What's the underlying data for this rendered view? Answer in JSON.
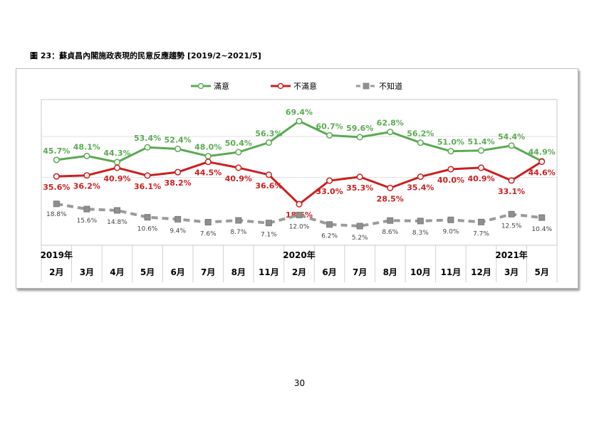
{
  "figure_title": "圖 23：蘇貞昌內閣施政表現的民意反應趨勢 [2019/2~2021/5]",
  "page_number": "30",
  "chart_data": {
    "type": "line",
    "title": "",
    "xlabel": "",
    "ylabel": "",
    "ylim": [
      0,
      75
    ],
    "grid": "horizontal",
    "legend_position": "top-center",
    "categories": [
      "2月",
      "3月",
      "4月",
      "5月",
      "6月",
      "7月",
      "8月",
      "11月",
      "2月",
      "6月",
      "7月",
      "8月",
      "10月",
      "11月",
      "12月",
      "3月",
      "5月"
    ],
    "year_labels": [
      {
        "label": "2019年",
        "index": 0
      },
      {
        "label": "2020年",
        "index": 8
      },
      {
        "label": "2021年",
        "index": 15
      }
    ],
    "series": [
      {
        "name": "滿意",
        "color": "#5aaa52",
        "dash": false,
        "values": [
          45.7,
          48.1,
          44.3,
          53.4,
          52.4,
          48.0,
          50.4,
          56.3,
          69.4,
          60.7,
          59.6,
          62.8,
          56.2,
          51.0,
          51.4,
          54.4,
          44.9
        ],
        "labels": [
          "45.7%",
          "48.1%",
          "44.3%",
          "53.4%",
          "52.4%",
          "48.0%",
          "50.4%",
          "56.3%",
          "69.4%",
          "60.7%",
          "59.6%",
          "62.8%",
          "56.2%",
          "51.0%",
          "51.4%",
          "54.4%",
          "44.9%"
        ]
      },
      {
        "name": "不滿意",
        "color": "#cc1f1f",
        "dash": false,
        "values": [
          35.6,
          36.2,
          40.9,
          36.1,
          38.2,
          44.5,
          40.9,
          36.6,
          18.6,
          33.0,
          35.3,
          28.5,
          35.4,
          40.0,
          40.9,
          33.1,
          44.6
        ],
        "labels": [
          "35.6%",
          "36.2%",
          "40.9%",
          "36.1%",
          "38.2%",
          "44.5%",
          "40.9%",
          "36.6%",
          "18.6%",
          "33.0%",
          "35.3%",
          "28.5%",
          "35.4%",
          "40.0%",
          "40.9%",
          "33.1%",
          "44.6%"
        ]
      },
      {
        "name": "不知道",
        "color": "#9b9b9b",
        "dash": true,
        "values": [
          18.8,
          15.6,
          14.8,
          10.6,
          9.4,
          7.6,
          8.7,
          7.1,
          12.0,
          6.2,
          5.2,
          8.6,
          8.3,
          9.0,
          7.7,
          12.5,
          10.4
        ],
        "labels": [
          "18.8%",
          "15.6%",
          "14.8%",
          "10.6%",
          "9.4%",
          "7.6%",
          "8.7%",
          "7.1%",
          "12.0%",
          "6.2%",
          "5.2%",
          "8.6%",
          "8.3%",
          "9.0%",
          "7.7%",
          "12.5%",
          "10.4%"
        ]
      }
    ]
  }
}
